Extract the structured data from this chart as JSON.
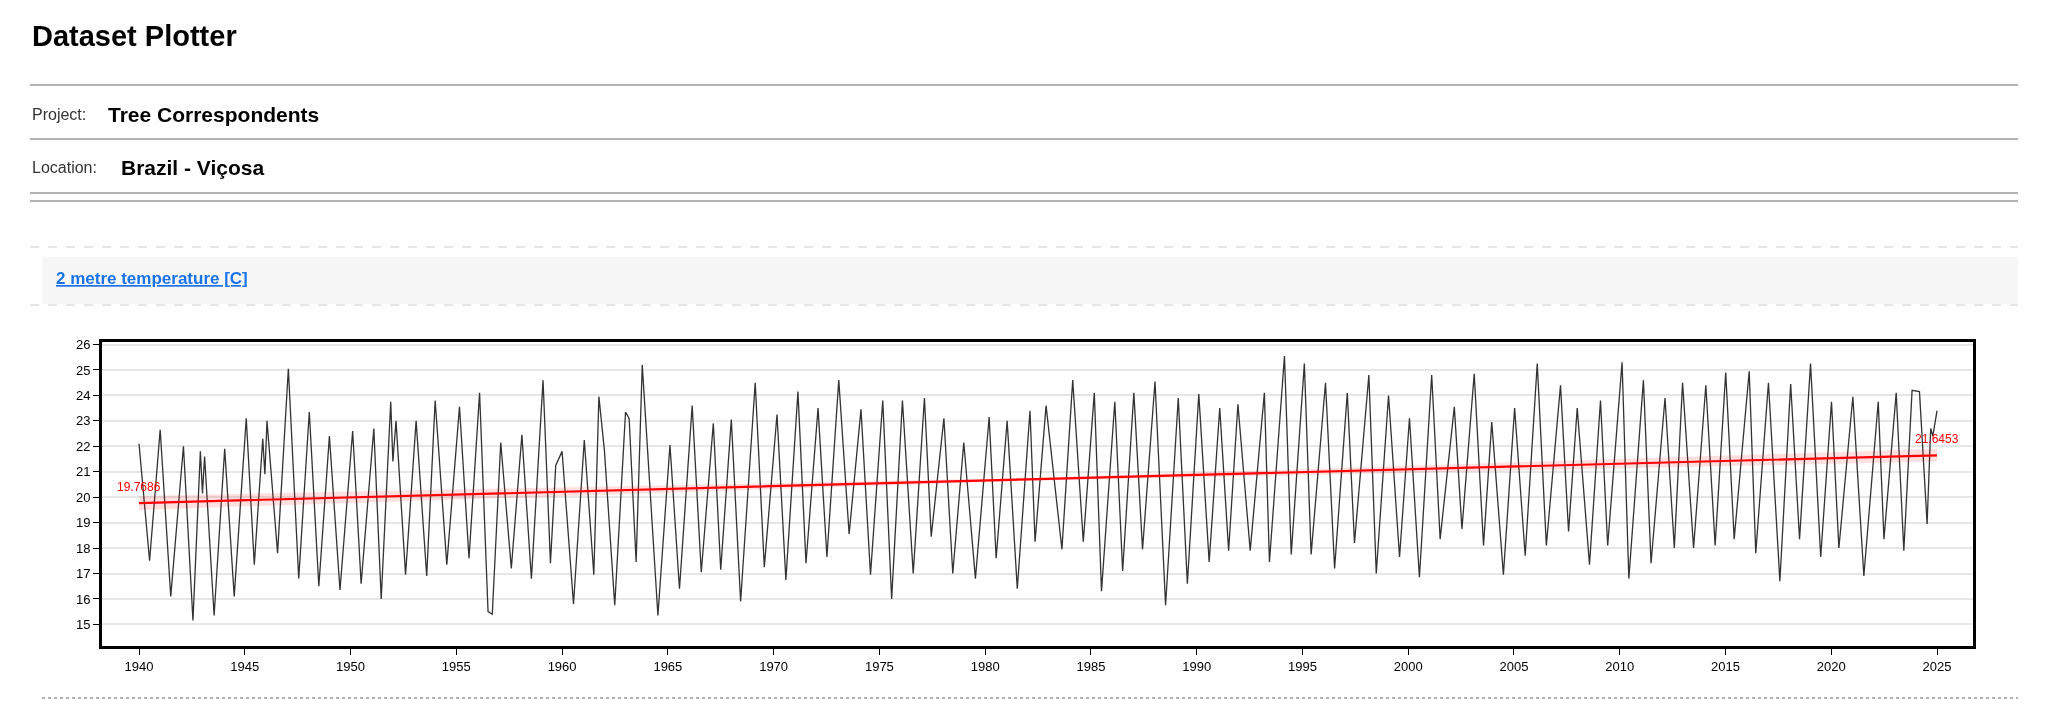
{
  "chart_data": {
    "type": "line",
    "title": "Dataset Plotter",
    "annotations": [
      "Project:",
      "Tree Correspondents",
      "Location:",
      "Brazil - Viçosa",
      "2 metre temperature [C]"
    ],
    "series": [
      {
        "color": "#333333",
        "x": [
          1940.0,
          1940.5,
          1941.0,
          1941.5,
          1942.1,
          1942.55,
          1942.9,
          1943.0,
          1943.1,
          1943.55,
          1944.05,
          1944.5,
          1945.07,
          1945.45,
          1945.85,
          1945.95,
          1946.05,
          1946.55,
          1947.06,
          1947.55,
          1948.05,
          1948.5,
          1949.0,
          1949.5,
          1950.1,
          1950.5,
          1951.1,
          1951.45,
          1951.9,
          1952.0,
          1952.15,
          1952.6,
          1953.1,
          1953.6,
          1954.0,
          1954.55,
          1955.15,
          1955.6,
          1956.1,
          1956.5,
          1956.7,
          1957.1,
          1957.6,
          1958.1,
          1958.55,
          1959.1,
          1959.45,
          1959.7,
          1960.0,
          1960.54,
          1961.05,
          1961.5,
          1961.74,
          1962.0,
          1962.49,
          1963.0,
          1963.17,
          1963.5,
          1963.79,
          1964.53,
          1965.1,
          1965.55,
          1966.15,
          1966.58,
          1967.15,
          1967.5,
          1968.0,
          1968.44,
          1969.13,
          1969.56,
          1970.16,
          1970.58,
          1971.15,
          1971.53,
          1972.1,
          1972.52,
          1973.08,
          1973.57,
          1974.13,
          1974.58,
          1975.16,
          1975.58,
          1976.09,
          1976.6,
          1977.13,
          1977.45,
          1978.05,
          1978.47,
          1978.99,
          1979.54,
          1980.19,
          1980.52,
          1981.04,
          1981.52,
          1982.12,
          1982.36,
          1982.88,
          1983.63,
          1984.14,
          1984.64,
          1985.16,
          1985.5,
          1986.13,
          1986.5,
          1987.03,
          1987.44,
          1988.03,
          1988.53,
          1989.13,
          1989.56,
          1990.1,
          1990.59,
          1991.09,
          1991.51,
          1991.95,
          1992.53,
          1993.2,
          1993.44,
          1994.15,
          1994.47,
          1995.09,
          1995.41,
          1996.09,
          1996.52,
          1997.12,
          1997.46,
          1998.14,
          1998.49,
          1999.07,
          1999.59,
          2000.06,
          2000.53,
          2001.11,
          2001.51,
          2002.18,
          2002.54,
          2003.12,
          2003.56,
          2003.95,
          2004.5,
          2005.03,
          2005.53,
          2006.1,
          2006.53,
          2007.2,
          2007.58,
          2007.99,
          2008.57,
          2009.09,
          2009.43,
          2010.11,
          2010.43,
          2011.12,
          2011.48,
          2012.14,
          2012.58,
          2012.97,
          2013.49,
          2014.07,
          2014.51,
          2015.01,
          2015.41,
          2016.12,
          2016.43,
          2017.03,
          2017.57,
          2018.08,
          2018.5,
          2019.02,
          2019.5,
          2020.01,
          2020.36,
          2021.02,
          2021.54,
          2022.22,
          2022.49,
          2023.07,
          2023.43,
          2023.82,
          2024.17,
          2024.53,
          2024.7,
          2024.8,
          2025.0
        ],
        "values": [
          22.1,
          17.5,
          22.65,
          16.1,
          22.0,
          15.15,
          21.8,
          20.15,
          21.6,
          15.35,
          21.9,
          16.1,
          23.1,
          17.35,
          22.3,
          20.9,
          23.0,
          17.8,
          25.05,
          16.8,
          23.35,
          16.5,
          22.4,
          16.35,
          22.6,
          16.6,
          22.7,
          16.0,
          23.75,
          21.4,
          23.0,
          16.95,
          23.0,
          16.9,
          23.8,
          17.35,
          23.55,
          17.6,
          24.1,
          15.5,
          15.4,
          22.15,
          17.2,
          22.45,
          16.8,
          24.6,
          17.4,
          21.25,
          21.8,
          15.8,
          22.25,
          16.95,
          23.95,
          21.85,
          15.75,
          23.35,
          23.1,
          17.45,
          25.2,
          15.35,
          22.05,
          16.4,
          23.6,
          17.05,
          22.9,
          17.15,
          23.05,
          15.9,
          24.5,
          17.25,
          23.25,
          16.75,
          24.15,
          17.4,
          23.5,
          17.65,
          24.6,
          18.55,
          23.45,
          16.95,
          23.8,
          16.0,
          23.8,
          17.0,
          23.9,
          18.45,
          23.1,
          17.0,
          22.15,
          16.8,
          23.15,
          17.6,
          23.0,
          16.4,
          23.4,
          18.25,
          23.6,
          17.95,
          24.6,
          18.25,
          24.1,
          16.3,
          23.75,
          17.1,
          24.1,
          17.95,
          24.55,
          15.75,
          23.9,
          16.6,
          24.05,
          17.45,
          23.5,
          17.9,
          23.65,
          17.9,
          24.1,
          17.45,
          25.55,
          17.75,
          25.25,
          17.75,
          24.5,
          17.2,
          24.1,
          18.2,
          24.8,
          17.0,
          24.0,
          17.65,
          23.1,
          16.85,
          24.8,
          18.35,
          23.55,
          18.75,
          24.85,
          18.1,
          22.95,
          16.95,
          23.5,
          17.7,
          25.25,
          18.1,
          24.4,
          18.65,
          23.5,
          17.35,
          23.8,
          18.1,
          25.3,
          16.8,
          24.6,
          17.4,
          23.9,
          18.0,
          24.5,
          18.0,
          24.4,
          18.1,
          24.9,
          18.35,
          24.95,
          17.8,
          24.5,
          16.7,
          24.45,
          18.35,
          25.25,
          17.65,
          23.75,
          18.0,
          23.95,
          16.9,
          23.75,
          18.35,
          24.1,
          17.9,
          24.2,
          24.15,
          18.95,
          22.7,
          22.4,
          23.4
        ]
      },
      {
        "color": "#ff0000",
        "x": [
          1940,
          1982.5,
          2025
        ],
        "values": [
          19.7686,
          20.71,
          21.6453
        ],
        "value_labels": [
          "19.7686",
          null,
          "21.6453"
        ],
        "lower": [
          19.5,
          20.65,
          21.4
        ],
        "upper": [
          20.05,
          20.77,
          21.9
        ]
      }
    ],
    "xlim": [
      1938.25,
      2026.7
    ],
    "ylim": [
      14.15,
      26.1
    ],
    "xticks": [
      1940,
      1945,
      1950,
      1955,
      1960,
      1965,
      1970,
      1975,
      1980,
      1985,
      1990,
      1995,
      2000,
      2005,
      2010,
      2015,
      2020,
      2025
    ],
    "yticks": [
      15,
      16,
      17,
      18,
      19,
      20,
      21,
      22,
      23,
      24,
      25,
      26
    ],
    "grid": "y",
    "marker": "none",
    "line_style": "solid"
  }
}
